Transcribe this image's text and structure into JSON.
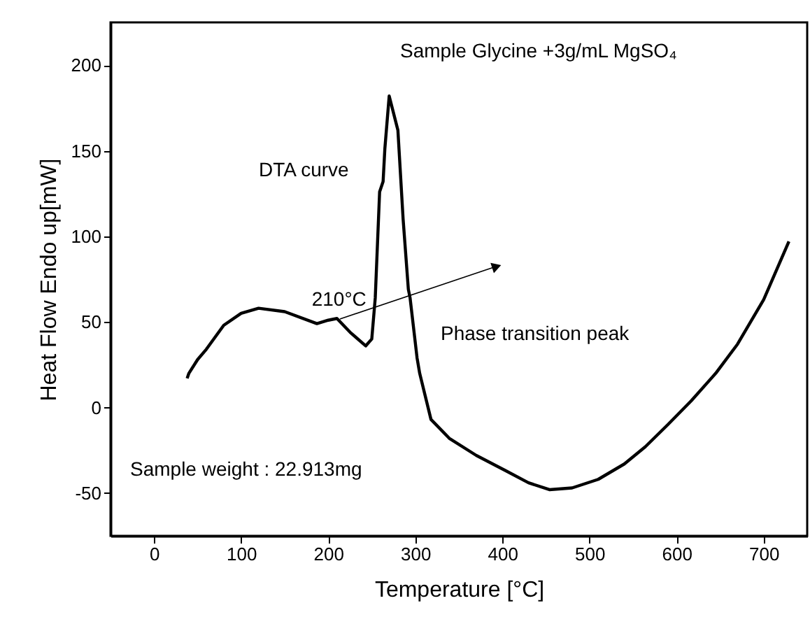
{
  "chart_data": {
    "type": "line",
    "title": "Sample Glycine +3g/mL MgSO₄",
    "xlabel": "Temperature [°C]",
    "ylabel": "Heat Flow Endo up[mW]",
    "xlim": [
      -50,
      750
    ],
    "ylim": [
      -75,
      225
    ],
    "xticks": [
      0,
      100,
      200,
      300,
      400,
      500,
      600,
      700
    ],
    "yticks": [
      -50,
      0,
      50,
      100,
      150,
      200
    ],
    "grid": false,
    "marker": "none",
    "line_style": "solid",
    "annotations": [
      "DTA curve",
      "Sample weight : 22.913mg",
      "Phase transition peak",
      {
        "text": "210°C",
        "x": 210,
        "y": 52
      }
    ],
    "series": [
      {
        "color": "#000000",
        "x": [
          38,
          40,
          50,
          60,
          80,
          100,
          120,
          150,
          187,
          200,
          210,
          225,
          243,
          250,
          254,
          259,
          263,
          265,
          270,
          280,
          286,
          292,
          294,
          302,
          305,
          318,
          339,
          370,
          404,
          430,
          454,
          480,
          510,
          540,
          564,
          590,
          617,
          645,
          670,
          700,
          729
        ],
        "values": [
          17,
          20,
          28,
          34,
          48,
          55,
          58,
          56,
          49,
          51,
          52,
          44,
          36,
          40,
          64,
          126,
          132,
          151,
          182,
          162,
          110,
          69,
          64,
          29,
          20,
          -7,
          -18,
          -28,
          -37,
          -44,
          -48,
          -47,
          -42,
          -33,
          -23,
          -10,
          4,
          20,
          37,
          63,
          97
        ]
      }
    ]
  }
}
